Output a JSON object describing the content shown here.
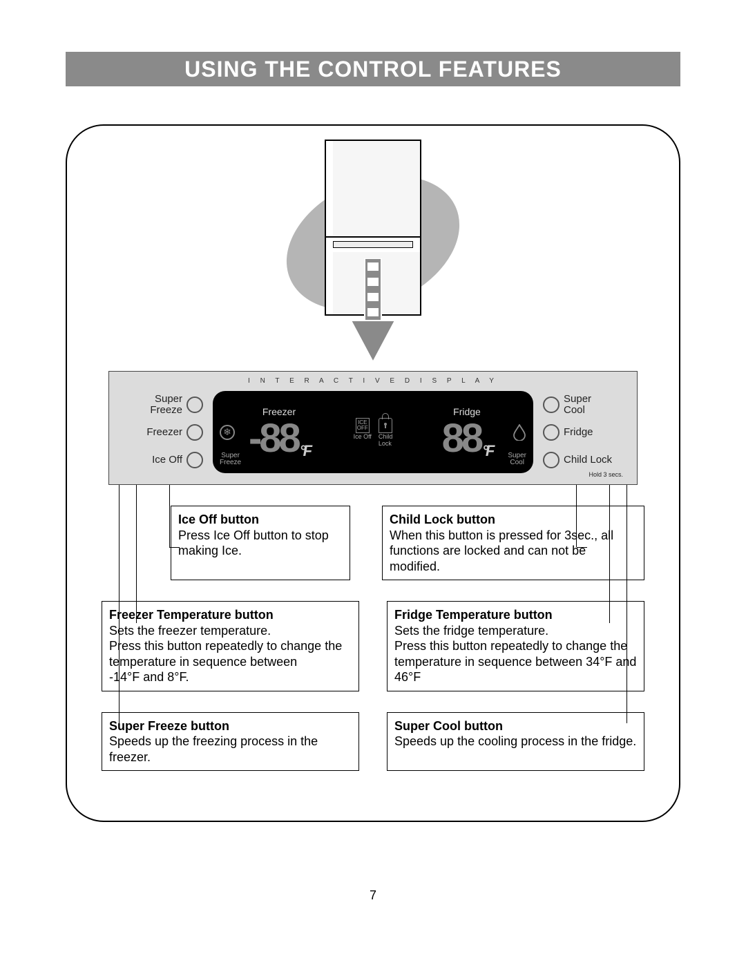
{
  "page_number": "7",
  "title": "USING THE CONTROL FEATURES",
  "colors": {
    "title_bar_bg": "#8a8a8a",
    "title_text": "#ffffff",
    "panel_bg": "#dcdcdc",
    "screen_bg": "#000000",
    "screen_text": "#ffffff",
    "blob": "#b5b5b5",
    "border": "#000000"
  },
  "panel": {
    "header": "I N T E R A C T I V E   D I S P L A Y",
    "left_buttons": [
      {
        "label": "Super\nFreeze"
      },
      {
        "label": "Freezer"
      },
      {
        "label": "Ice Off"
      }
    ],
    "right_buttons": [
      {
        "label": "Super\nCool"
      },
      {
        "label": "Fridge"
      },
      {
        "label": "Child Lock",
        "sub": "Hold  3 secs."
      }
    ],
    "screen": {
      "freezer": {
        "title": "Freezer",
        "digits": "-88",
        "unit": "°F",
        "sub": "Super\nFreeze"
      },
      "fridge": {
        "title": "Fridge",
        "digits": "88",
        "unit": "°F",
        "sub": "Super\nCool"
      },
      "center": {
        "ice_off": {
          "box_line1": "ICE",
          "box_line2": "OFF",
          "label": "Ice Off"
        },
        "child_lock": {
          "label": "Child\nLock"
        }
      }
    }
  },
  "callouts": {
    "ice_off": {
      "title": "Ice Off button",
      "body": "Press Ice Off button to stop making Ice."
    },
    "child_lock": {
      "title": "Child Lock button",
      "body": "When this button is pressed for 3sec., all functions are locked and can not be modified."
    },
    "freezer_temp": {
      "title": "Freezer Temperature button",
      "body": "Sets the freezer temperature.\nPress this button repeatedly to change the temperature in sequence between\n-14°F and 8°F."
    },
    "fridge_temp": {
      "title": "Fridge Temperature button",
      "body": "Sets the fridge temperature.\nPress this button repeatedly to change the temperature in sequence between 34°F and 46°F"
    },
    "super_freeze": {
      "title": "Super Freeze button",
      "body": "Speeds up the freezing process in the freezer."
    },
    "super_cool": {
      "title": "Super Cool button",
      "body": "Speeds up the cooling process in the fridge."
    }
  }
}
